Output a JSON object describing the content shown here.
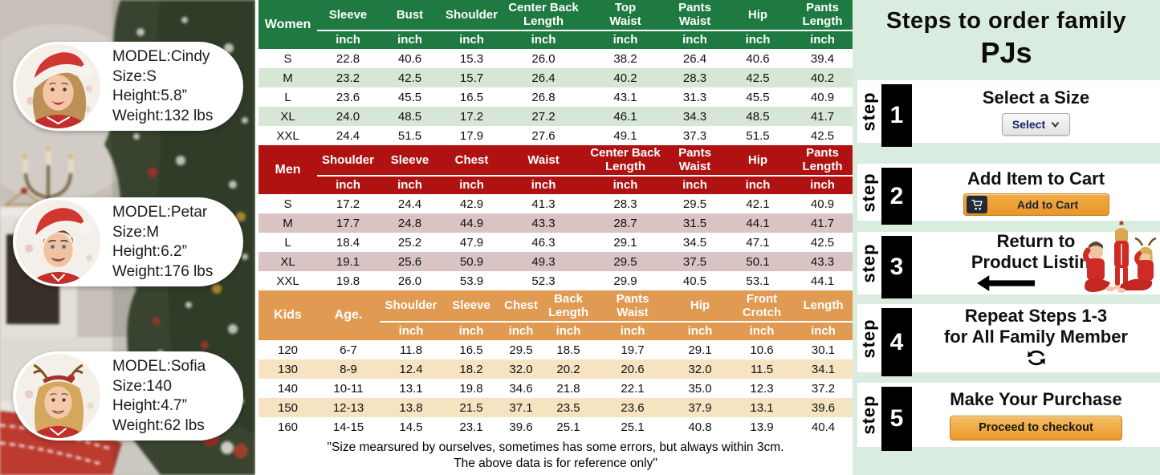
{
  "left_panel": {
    "models": [
      {
        "name": "MODEL:Cindy",
        "size": "Size:S",
        "height": "Height:5.8”",
        "weight": "Weight:132 lbs"
      },
      {
        "name": "MODEL:Petar",
        "size": "Size:M",
        "height": "Height:6.2”",
        "weight": "Weight:176 lbs"
      },
      {
        "name": "MODEL:Sofia",
        "size": "Size:140",
        "height": "Height:4.7”",
        "weight": "Weight:62 lbs"
      }
    ]
  },
  "size_tables": {
    "women": {
      "head_labels": [
        "Women"
      ],
      "columns": [
        "Sleeve",
        "Bust",
        "Shoulder",
        "Center Back\nLength",
        "Top\nWaist",
        "Pants\nWaist",
        "Hip",
        "Pants\nLength"
      ],
      "unit": "inch",
      "rows": [
        [
          "S",
          "22.8",
          "40.6",
          "15.3",
          "26.0",
          "38.2",
          "26.4",
          "40.6",
          "39.4"
        ],
        [
          "M",
          "23.2",
          "42.5",
          "15.7",
          "26.4",
          "40.2",
          "28.3",
          "42.5",
          "40.2"
        ],
        [
          "L",
          "23.6",
          "45.5",
          "16.5",
          "26.8",
          "43.1",
          "31.3",
          "45.5",
          "40.9"
        ],
        [
          "XL",
          "24.0",
          "48.5",
          "17.2",
          "27.2",
          "46.1",
          "34.3",
          "48.5",
          "41.7"
        ],
        [
          "XXL",
          "24.4",
          "51.5",
          "17.9",
          "27.6",
          "49.1",
          "37.3",
          "51.5",
          "42.5"
        ]
      ]
    },
    "men": {
      "head_labels": [
        "Men"
      ],
      "columns": [
        "Shoulder",
        "Sleeve",
        "Chest",
        "Waist",
        "Center Back\nLength",
        "Pants\nWaist",
        "Hip",
        "Pants\nLength"
      ],
      "unit": "inch",
      "rows": [
        [
          "S",
          "17.2",
          "24.4",
          "42.9",
          "41.3",
          "28.3",
          "29.5",
          "42.1",
          "40.9"
        ],
        [
          "M",
          "17.7",
          "24.8",
          "44.9",
          "43.3",
          "28.7",
          "31.5",
          "44.1",
          "41.7"
        ],
        [
          "L",
          "18.4",
          "25.2",
          "47.9",
          "46.3",
          "29.1",
          "34.5",
          "47.1",
          "42.5"
        ],
        [
          "XL",
          "19.1",
          "25.6",
          "50.9",
          "49.3",
          "29.5",
          "37.5",
          "50.1",
          "43.3"
        ],
        [
          "XXL",
          "19.8",
          "26.0",
          "53.9",
          "52.3",
          "29.9",
          "40.5",
          "53.1",
          "44.1"
        ]
      ]
    },
    "kids": {
      "head_labels": [
        "Kids",
        "Age."
      ],
      "columns": [
        "Shoulder",
        "Sleeve",
        "Chest",
        "Back\nLength",
        "Pants\nWaist",
        "Hip",
        "Front\nCrotch",
        "Length"
      ],
      "unit": "inch",
      "rows": [
        [
          "120",
          "6-7",
          "11.8",
          "16.5",
          "29.5",
          "18.5",
          "19.7",
          "29.1",
          "10.6",
          "30.1"
        ],
        [
          "130",
          "8-9",
          "12.4",
          "18.2",
          "32.0",
          "20.2",
          "20.6",
          "32.0",
          "11.5",
          "34.1"
        ],
        [
          "140",
          "10-11",
          "13.1",
          "19.8",
          "34.6",
          "21.8",
          "22.1",
          "35.0",
          "12.3",
          "37.2"
        ],
        [
          "150",
          "12-13",
          "13.8",
          "21.5",
          "37.1",
          "23.5",
          "23.6",
          "37.9",
          "13.1",
          "39.6"
        ],
        [
          "160",
          "14-15",
          "14.5",
          "23.1",
          "39.6",
          "25.1",
          "25.1",
          "40.8",
          "13.9",
          "40.4"
        ]
      ]
    },
    "footnote_line1": "\"Size mearsured by ourselves, sometimes has some errors, but always within 3cm.",
    "footnote_line2": "The above data is for reference only\""
  },
  "steps_panel": {
    "title_line1": "Steps to order family",
    "title_line2": "PJs",
    "step_label": "step",
    "steps": [
      {
        "num": "1",
        "title": "Select a Size",
        "control": "Select"
      },
      {
        "num": "2",
        "title": "Add Item to Cart",
        "control": "Add to Cart"
      },
      {
        "num": "3",
        "title_line1": "Return to",
        "title_line2": "Product Listing"
      },
      {
        "num": "4",
        "title_line1": "Repeat Steps 1-3",
        "title_line2": "for All Family Member"
      },
      {
        "num": "5",
        "title": "Make Your Purchase",
        "control": "Proceed to checkout"
      }
    ]
  },
  "colors": {
    "women_header_green": "#1e7a41",
    "women_row_green": "#d7e7d5",
    "men_header_red": "#b01212",
    "men_row_pink": "#dac3c3",
    "kids_header_orange": "#e09a52",
    "kids_row_tan": "#f5e3c1",
    "panel_mint": "#daecdf",
    "amazon_button_orange": "#eda03a",
    "step_box_black": "#000000"
  }
}
